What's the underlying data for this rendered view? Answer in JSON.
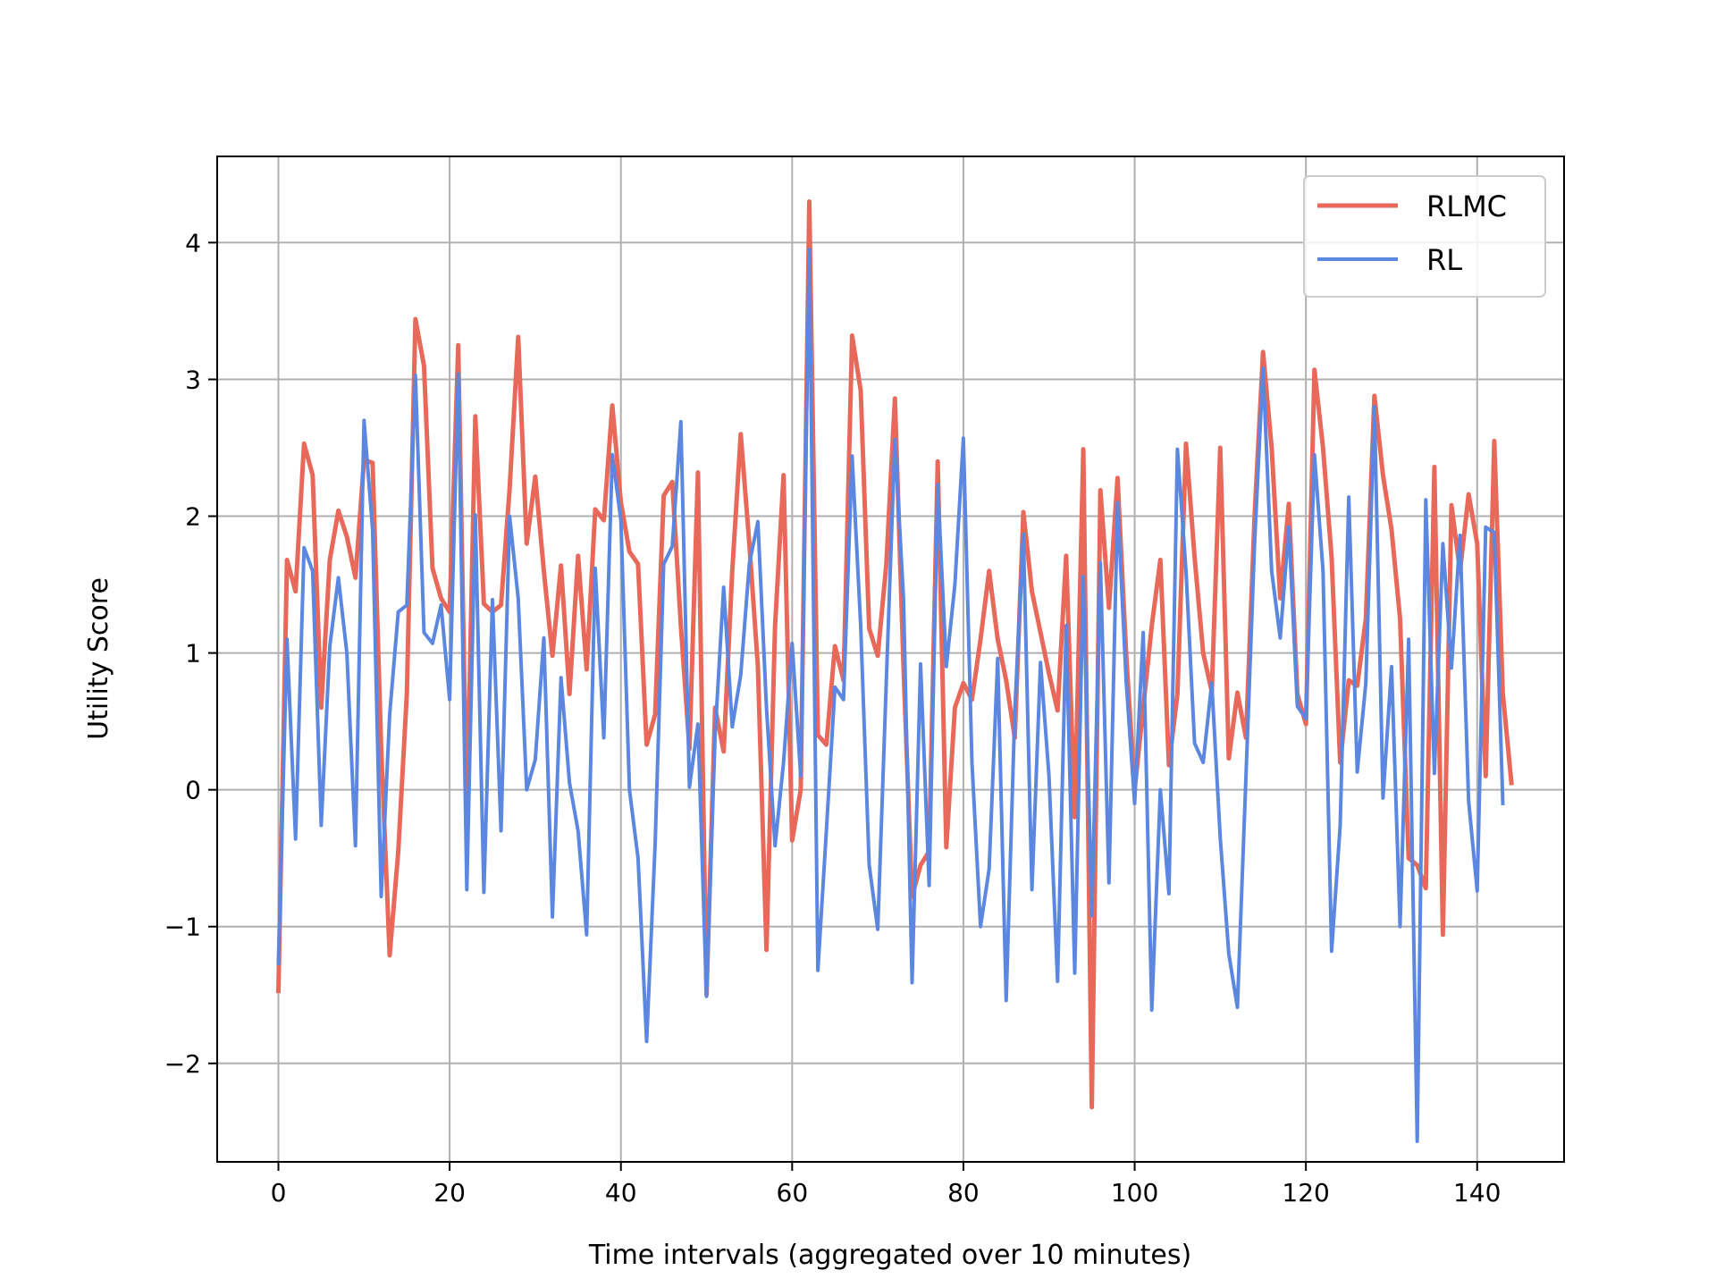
{
  "chart_data": {
    "type": "line",
    "xlabel": "Time intervals (aggregated over 10 minutes)",
    "ylabel": "Utility Score",
    "xlim": [
      -7.15,
      150.15
    ],
    "ylim": [
      -2.72,
      4.63
    ],
    "xticks": [
      0,
      20,
      40,
      60,
      80,
      100,
      120,
      140
    ],
    "yticks": [
      -2,
      -1,
      0,
      1,
      2,
      3,
      4
    ],
    "grid": true,
    "legend_position": "top-right",
    "series": [
      {
        "name": "RLMC",
        "color": "#e8685a",
        "values": [
          -1.47,
          1.68,
          1.45,
          2.53,
          2.3,
          0.6,
          1.68,
          2.04,
          1.85,
          1.55,
          2.41,
          2.39,
          0.3,
          -1.21,
          -0.45,
          0.7,
          3.44,
          3.1,
          1.62,
          1.4,
          1.3,
          3.25,
          -0.2,
          2.73,
          1.36,
          1.3,
          1.35,
          2.2,
          3.31,
          1.8,
          2.29,
          1.6,
          0.98,
          1.64,
          0.7,
          1.71,
          0.88,
          2.05,
          1.97,
          2.81,
          2.1,
          1.74,
          1.65,
          0.33,
          0.55,
          2.15,
          2.25,
          1.2,
          0.3,
          2.32,
          -1.5,
          0.6,
          0.28,
          1.6,
          2.6,
          1.8,
          0.9,
          -1.17,
          1.2,
          2.3,
          -0.37,
          0.0,
          4.3,
          0.4,
          0.33,
          1.05,
          0.8,
          3.32,
          2.92,
          1.18,
          0.98,
          1.65,
          2.86,
          0.9,
          -0.78,
          -0.55,
          -0.45,
          2.4,
          -0.42,
          0.6,
          0.78,
          0.66,
          1.1,
          1.6,
          1.1,
          0.8,
          0.38,
          2.03,
          1.45,
          1.15,
          0.85,
          0.58,
          1.71,
          -0.2,
          2.49,
          -2.32,
          2.19,
          1.33,
          2.28,
          1.0,
          0.0,
          0.6,
          1.2,
          1.68,
          0.18,
          0.7,
          2.53,
          1.7,
          1.0,
          0.72,
          2.5,
          0.23,
          0.71,
          0.38,
          2.0,
          3.2,
          2.5,
          1.4,
          2.09,
          0.7,
          0.48,
          3.07,
          2.5,
          1.7,
          0.2,
          0.8,
          0.76,
          1.25,
          2.88,
          2.3,
          1.9,
          1.25,
          -0.5,
          -0.55,
          -0.72,
          2.36,
          -1.06,
          2.08,
          1.6,
          2.16,
          1.8,
          0.1,
          2.55,
          0.7,
          0.05
        ]
      },
      {
        "name": "RL",
        "color": "#5b87e0",
        "values": [
          -1.27,
          1.1,
          -0.36,
          1.77,
          1.6,
          -0.26,
          1.05,
          1.55,
          1.0,
          -0.41,
          2.7,
          1.9,
          -0.78,
          0.55,
          1.3,
          1.35,
          3.03,
          1.15,
          1.07,
          1.35,
          0.66,
          3.04,
          -0.73,
          2.01,
          -0.75,
          1.39,
          -0.3,
          2.0,
          1.4,
          0.0,
          0.22,
          1.11,
          -0.93,
          0.82,
          0.05,
          -0.3,
          -1.06,
          1.62,
          0.38,
          2.45,
          1.97,
          0.0,
          -0.5,
          -1.84,
          -0.4,
          1.65,
          1.78,
          2.69,
          0.02,
          0.48,
          -1.51,
          0.4,
          1.48,
          0.46,
          0.84,
          1.65,
          1.96,
          0.6,
          -0.41,
          0.2,
          1.07,
          0.1,
          3.95,
          -1.32,
          -0.3,
          0.75,
          0.66,
          2.44,
          1.2,
          -0.55,
          -1.02,
          0.8,
          2.56,
          1.4,
          -1.41,
          0.92,
          -0.7,
          2.23,
          0.9,
          1.5,
          2.57,
          0.2,
          -1.0,
          -0.58,
          0.96,
          -1.54,
          0.57,
          1.87,
          -0.73,
          0.93,
          0.1,
          -1.4,
          1.2,
          -1.34,
          1.56,
          -0.92,
          1.66,
          -0.68,
          2.1,
          0.8,
          -0.1,
          1.15,
          -1.61,
          0.0,
          -0.76,
          2.49,
          1.6,
          0.34,
          0.2,
          0.78,
          -0.35,
          -1.2,
          -1.59,
          0.1,
          1.8,
          3.08,
          1.6,
          1.11,
          1.92,
          0.61,
          0.52,
          2.45,
          1.6,
          -1.18,
          -0.26,
          2.14,
          0.13,
          0.78,
          2.8,
          -0.06,
          0.9,
          -1.0,
          1.1,
          -2.57,
          2.12,
          0.12,
          1.8,
          0.89,
          1.86,
          -0.08,
          -0.74,
          1.92,
          1.88,
          -0.1
        ]
      }
    ]
  }
}
